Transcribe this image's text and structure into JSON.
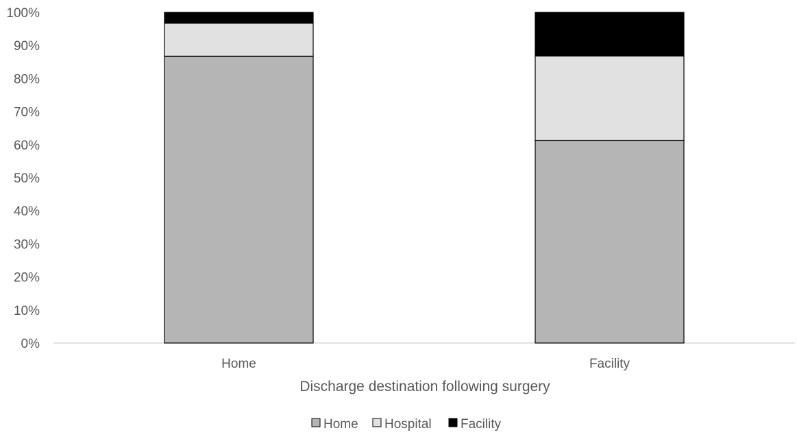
{
  "chart_data": {
    "type": "bar",
    "stacked": true,
    "percent": true,
    "categories": [
      "Home",
      "Facility"
    ],
    "series": [
      {
        "name": "Home",
        "values": [
          86.7,
          61.3
        ],
        "color": "#b5b5b5"
      },
      {
        "name": "Hospital",
        "values": [
          10.0,
          25.5
        ],
        "color": "#e1e1e1"
      },
      {
        "name": "Facility",
        "values": [
          3.3,
          13.2
        ],
        "color": "#000000"
      }
    ],
    "title": "",
    "xlabel": "Discharge destination following surgery",
    "ylabel": "",
    "ylim": [
      0,
      100
    ],
    "yticks": [
      "0%",
      "10%",
      "20%",
      "30%",
      "40%",
      "50%",
      "60%",
      "70%",
      "80%",
      "90%",
      "100%"
    ],
    "grid": false,
    "legend_position": "bottom"
  }
}
